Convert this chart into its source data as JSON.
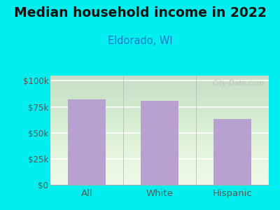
{
  "title": "Median household income in 2022",
  "subtitle": "Eldorado, WI",
  "categories": [
    "All",
    "White",
    "Hispanic"
  ],
  "values": [
    82000,
    81000,
    63000
  ],
  "bar_color": "#b8a0d0",
  "bg_color": "#00EEEE",
  "plot_bg_color": "#edf8e4",
  "title_fontsize": 13.5,
  "subtitle_fontsize": 10.5,
  "title_color": "#111111",
  "subtitle_color": "#2277cc",
  "tick_color": "#555555",
  "yticks": [
    0,
    25000,
    50000,
    75000,
    100000
  ],
  "ytick_labels": [
    "$0",
    "$25k",
    "$50k",
    "$75k",
    "$100k"
  ],
  "ylim": [
    0,
    105000
  ],
  "watermark": "City-Data.com",
  "watermark_color": "#bbbbbb"
}
